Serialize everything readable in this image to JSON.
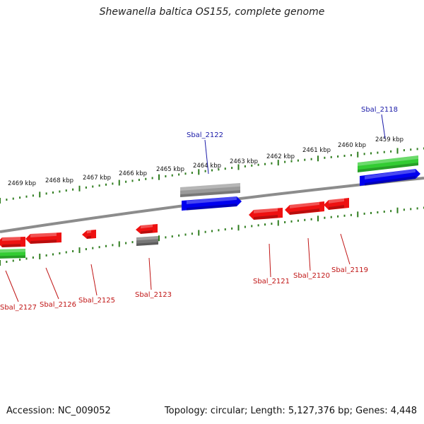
{
  "title": "Shewanella baltica OS155, complete genome",
  "footer": {
    "accession": "Accession: NC_009052",
    "summary": "Topology: circular; Length: 5,127,376 bp; Genes: 4,448"
  },
  "colors": {
    "backbone": "#8c8c8c",
    "tick": "#2f7d1f",
    "forward_cds": "#0000ee",
    "reverse_cds": "#ee1111",
    "rna": "#33cc33",
    "pseudo": "#9a9a9a",
    "label_forward": "#1a1aa8",
    "label_reverse": "#c01515"
  },
  "scale_labels": [
    "2469 kbp",
    "2468 kbp",
    "2467 kbp",
    "2466 kbp",
    "2465 kbp",
    "2464 kbp",
    "2463 kbp",
    "2462 kbp",
    "2461 kbp",
    "2460 kbp",
    "2459 kbp"
  ],
  "genes": [
    {
      "name": "Sbal_2122",
      "strand": "+",
      "type": "CDS",
      "label_color": "forward"
    },
    {
      "name": "Sbal_2118",
      "strand": "+",
      "type": "CDS",
      "label_color": "forward"
    },
    {
      "name": "Sbal_2121",
      "strand": "-",
      "type": "CDS",
      "label_color": "reverse"
    },
    {
      "name": "Sbal_2120",
      "strand": "-",
      "type": "CDS",
      "label_color": "reverse"
    },
    {
      "name": "Sbal_2119",
      "strand": "-",
      "type": "CDS",
      "label_color": "reverse"
    },
    {
      "name": "Sbal_2123",
      "strand": "-",
      "type": "CDS",
      "label_color": "reverse"
    },
    {
      "name": "Sbal_2125",
      "strand": "-",
      "type": "CDS",
      "label_color": "reverse"
    },
    {
      "name": "Sbal_2126",
      "strand": "-",
      "type": "CDS",
      "label_color": "reverse"
    },
    {
      "name": "Sbal_2127",
      "strand": "-",
      "type": "CDS",
      "label_color": "reverse"
    }
  ]
}
